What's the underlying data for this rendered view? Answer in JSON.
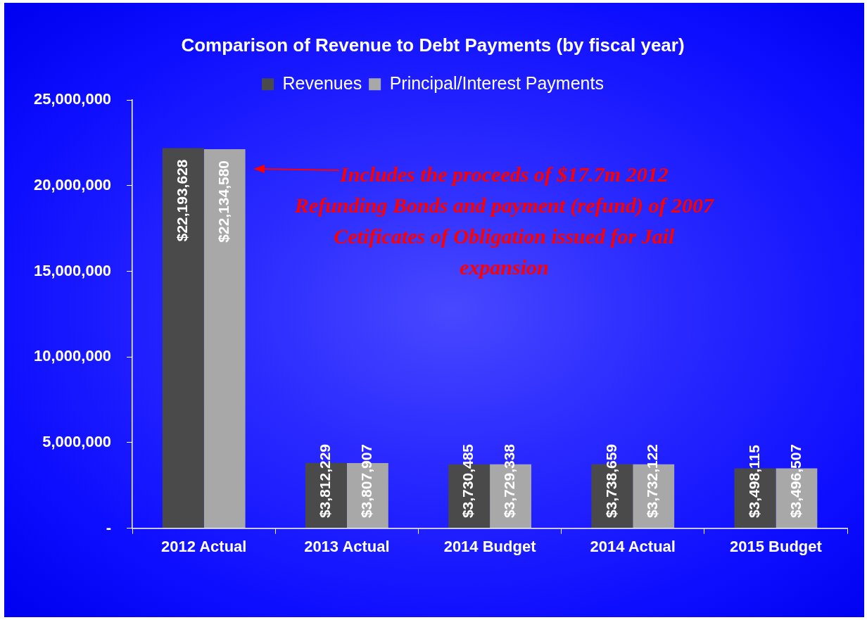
{
  "chart_data": {
    "type": "bar",
    "title": "Comparison of Revenue to Debt Payments (by fiscal year)",
    "categories": [
      "2012 Actual",
      "2013 Actual",
      "2014 Budget",
      "2014 Actual",
      "2015 Budget"
    ],
    "series": [
      {
        "name": "Revenues",
        "color": "#4a4a4a",
        "values": [
          22193628,
          3812229,
          3730485,
          3738659,
          3498115
        ],
        "value_labels": [
          "$22,193,628",
          "$3,812,229",
          "$3,730,485",
          "$3,738,659",
          "$3,498,115"
        ]
      },
      {
        "name": "Principal/Interest Payments",
        "color": "#a8a8a8",
        "values": [
          22134580,
          3807907,
          3729338,
          3732122,
          3496507
        ],
        "value_labels": [
          "$22,134,580",
          "$3,807,907",
          "$3,729,338",
          "$3,732,122",
          "$3,496,507"
        ]
      }
    ],
    "ylim": [
      0,
      25000000
    ],
    "yticks": [
      {
        "value": 0,
        "label": "-"
      },
      {
        "value": 5000000,
        "label": "5,000,000"
      },
      {
        "value": 10000000,
        "label": "10,000,000"
      },
      {
        "value": 15000000,
        "label": "15,000,000"
      },
      {
        "value": 20000000,
        "label": "20,000,000"
      },
      {
        "value": 25000000,
        "label": "25,000,000"
      }
    ],
    "grid": false,
    "legend": "top",
    "annotations": [
      "Includes the proceeds of $17.7m 2012 Refunding Bonds and payment (refund) of 2007 Cetificates of Obligation issued for Jail expansion"
    ]
  }
}
